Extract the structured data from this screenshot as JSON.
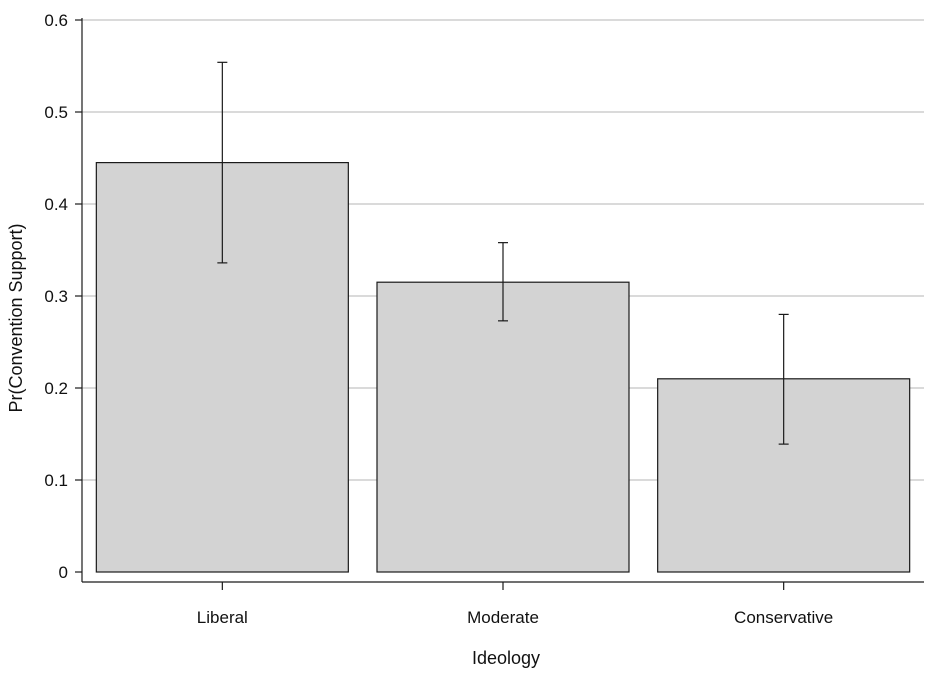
{
  "chart_data": {
    "type": "bar",
    "title": "",
    "xlabel": "Ideology",
    "ylabel": "Pr(Convention Support)",
    "categories": [
      "Liberal",
      "Moderate",
      "Conservative"
    ],
    "values": [
      0.445,
      0.315,
      0.21
    ],
    "error_bars": [
      {
        "low": 0.336,
        "high": 0.554
      },
      {
        "low": 0.273,
        "high": 0.358
      },
      {
        "low": 0.139,
        "high": 0.28
      }
    ],
    "ylim": [
      0,
      0.6
    ],
    "yticks": [
      0,
      0.1,
      0.2,
      0.3,
      0.4,
      0.5,
      0.6
    ],
    "ytick_labels": [
      "0",
      "0.1",
      "0.2",
      "0.3",
      "0.4",
      "0.5",
      "0.6"
    ],
    "grid": true,
    "colors": {
      "bar_fill": "#d3d3d3",
      "bar_stroke": "#1a1a1a",
      "grid": "#b4b4b4",
      "axis": "#1a1a1a"
    }
  }
}
